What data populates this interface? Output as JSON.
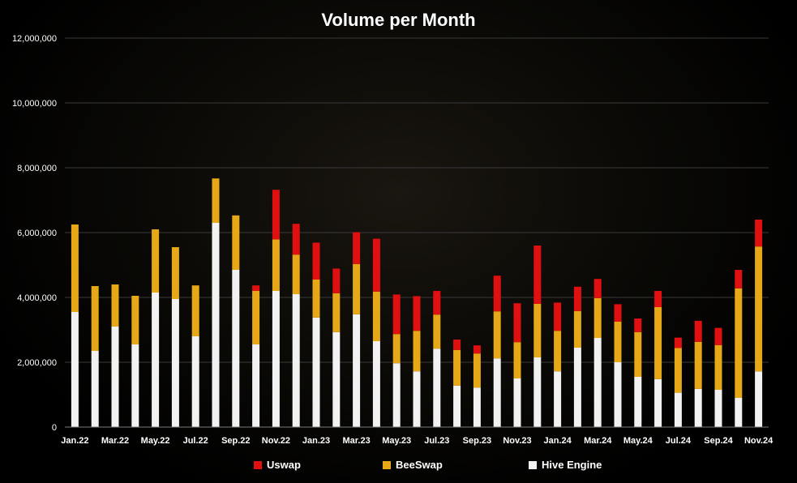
{
  "chart_data": {
    "type": "bar",
    "stacked": true,
    "title": "Volume per Month",
    "xlabel": "",
    "ylabel": "",
    "ylim": [
      0,
      12000000
    ],
    "yticks": [
      0,
      2000000,
      4000000,
      6000000,
      8000000,
      10000000,
      12000000
    ],
    "ytick_labels": [
      "0",
      "2,000,000",
      "4,000,000",
      "6,000,000",
      "8,000,000",
      "10,000,000",
      "12,000,000"
    ],
    "grid": "horizontal",
    "legend_position": "bottom",
    "categories": [
      "Jan.22",
      "Feb.22",
      "Mar.22",
      "Apr.22",
      "May.22",
      "Jun.22",
      "Jul.22",
      "Aug.22",
      "Sep.22",
      "Oct.22",
      "Nov.22",
      "Dec.22",
      "Jan.23",
      "Feb.23",
      "Mar.23",
      "Apr.23",
      "May.23",
      "Jun.23",
      "Jul.23",
      "Aug.23",
      "Sep.23",
      "Oct.23",
      "Nov.23",
      "Dec.23",
      "Jan.24",
      "Feb.24",
      "Mar.24",
      "Apr.24",
      "May.24",
      "Jun.24",
      "Jul.24",
      "Aug.24",
      "Sep.24",
      "Oct.24",
      "Nov.24"
    ],
    "xtick_labels": [
      "Jan.22",
      "",
      "Mar.22",
      "",
      "May.22",
      "",
      "Jul.22",
      "",
      "Sep.22",
      "",
      "Nov.22",
      "",
      "Jan.23",
      "",
      "Mar.23",
      "",
      "May.23",
      "",
      "Jul.23",
      "",
      "Sep.23",
      "",
      "Nov.23",
      "",
      "Jan.24",
      "",
      "Mar.24",
      "",
      "May.24",
      "",
      "Jul.24",
      "",
      "Sep.24",
      "",
      "Nov.24"
    ],
    "series": [
      {
        "name": "Hive Engine",
        "color": "#f2f2f2",
        "values": [
          3550000,
          2350000,
          3100000,
          2550000,
          4150000,
          3950000,
          2800000,
          6300000,
          4850000,
          2550000,
          4200000,
          4100000,
          3380000,
          2930000,
          3480000,
          2650000,
          1970000,
          1720000,
          2420000,
          1280000,
          1220000,
          2120000,
          1500000,
          2150000,
          1720000,
          2450000,
          2750000,
          2000000,
          1550000,
          1480000,
          1060000,
          1180000,
          1150000,
          900000,
          1720000
        ]
      },
      {
        "name": "BeeSwap",
        "color": "#e6a817",
        "values": [
          2700000,
          2000000,
          1300000,
          1500000,
          1950000,
          1600000,
          1570000,
          1370000,
          1680000,
          1650000,
          1590000,
          1220000,
          1170000,
          1200000,
          1550000,
          1530000,
          900000,
          1250000,
          1050000,
          1100000,
          1050000,
          1450000,
          1120000,
          1650000,
          1250000,
          1130000,
          1230000,
          1250000,
          1380000,
          2220000,
          1380000,
          1450000,
          1380000,
          3380000,
          3850000
        ]
      },
      {
        "name": "Uswap",
        "color": "#e01010",
        "values": [
          0,
          0,
          0,
          0,
          0,
          0,
          0,
          0,
          0,
          170000,
          1530000,
          950000,
          1140000,
          760000,
          980000,
          1630000,
          1220000,
          1070000,
          730000,
          320000,
          250000,
          1100000,
          1200000,
          1800000,
          870000,
          750000,
          590000,
          540000,
          420000,
          500000,
          320000,
          650000,
          530000,
          570000,
          830000
        ]
      }
    ]
  },
  "legend": [
    {
      "label": "Uswap",
      "color": "#e01010"
    },
    {
      "label": "BeeSwap",
      "color": "#e6a817"
    },
    {
      "label": "Hive Engine",
      "color": "#f2f2f2"
    }
  ]
}
